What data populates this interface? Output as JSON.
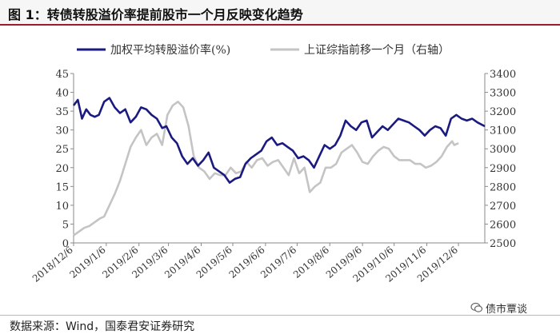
{
  "header": {
    "title": "图 1：转债转股溢价率提前股市一个月反映变化趋势"
  },
  "footer": {
    "source": "数据来源：Wind，国泰君安证券研究"
  },
  "watermark": {
    "text": "债市覃谈",
    "icon": "wechat-icon"
  },
  "colors": {
    "premium": "#1a1a80",
    "index": "#c4c4c4",
    "title_rule": "#9b1c2e",
    "axis": "#8a8a8a"
  },
  "chart_data": {
    "type": "line",
    "legend_position": "top",
    "grid": false,
    "x_range": [
      "2018-12-06",
      "2019-12-31"
    ],
    "x_ticks": [
      "2018/12/6",
      "2019/1/6",
      "2019/2/6",
      "2019/3/6",
      "2019/4/6",
      "2019/5/6",
      "2019/6/6",
      "2019/7/6",
      "2019/8/6",
      "2019/9/6",
      "2019/10/6",
      "2019/11/6",
      "2019/12/6"
    ],
    "y_left": {
      "min": 0,
      "max": 45,
      "ticks": [
        0,
        5,
        10,
        15,
        20,
        25,
        30,
        35,
        40,
        45
      ]
    },
    "y_right": {
      "min": 2500,
      "max": 3400,
      "ticks": [
        2500,
        2600,
        2700,
        2800,
        2900,
        3000,
        3100,
        3200,
        3300,
        3400
      ]
    },
    "series": [
      {
        "name": "加权平均转股溢价率(%)",
        "axis": "left",
        "x": [
          "2018-12-06",
          "2018-12-10",
          "2018-12-14",
          "2018-12-18",
          "2018-12-22",
          "2018-12-26",
          "2018-12-30",
          "2019-01-04",
          "2019-01-09",
          "2019-01-14",
          "2019-01-19",
          "2019-01-24",
          "2019-01-29",
          "2019-02-03",
          "2019-02-08",
          "2019-02-13",
          "2019-02-18",
          "2019-02-23",
          "2019-02-28",
          "2019-03-04",
          "2019-03-09",
          "2019-03-14",
          "2019-03-19",
          "2019-03-24",
          "2019-03-29",
          "2019-04-03",
          "2019-04-08",
          "2019-04-13",
          "2019-04-18",
          "2019-04-23",
          "2019-04-28",
          "2019-05-03",
          "2019-05-08",
          "2019-05-13",
          "2019-05-18",
          "2019-05-23",
          "2019-05-28",
          "2019-06-02",
          "2019-06-07",
          "2019-06-12",
          "2019-06-17",
          "2019-06-22",
          "2019-06-27",
          "2019-07-02",
          "2019-07-07",
          "2019-07-12",
          "2019-07-17",
          "2019-07-22",
          "2019-07-27",
          "2019-08-01",
          "2019-08-06",
          "2019-08-11",
          "2019-08-16",
          "2019-08-21",
          "2019-08-26",
          "2019-08-31",
          "2019-09-05",
          "2019-09-10",
          "2019-09-15",
          "2019-09-20",
          "2019-09-25",
          "2019-09-30",
          "2019-10-05",
          "2019-10-10",
          "2019-10-15",
          "2019-10-20",
          "2019-10-25",
          "2019-10-30",
          "2019-11-04",
          "2019-11-09",
          "2019-11-14",
          "2019-11-19",
          "2019-11-24",
          "2019-11-29",
          "2019-12-04",
          "2019-12-09",
          "2019-12-14",
          "2019-12-19",
          "2019-12-24",
          "2019-12-31"
        ],
        "y": [
          36.5,
          38,
          33,
          35.5,
          34,
          33.5,
          34,
          37.5,
          38.5,
          36,
          34.5,
          35.5,
          32,
          33.5,
          36,
          35.5,
          34,
          33,
          30.5,
          31,
          28,
          26.5,
          23,
          21,
          22.5,
          20.5,
          22,
          24,
          20,
          19,
          18,
          16,
          17,
          17.5,
          21,
          22.5,
          23.5,
          24.5,
          27,
          28,
          26,
          26.5,
          25.5,
          24.5,
          22.5,
          23,
          22,
          20,
          23,
          26,
          25,
          26,
          28.5,
          32.5,
          31,
          30,
          32,
          32.5,
          28,
          29.5,
          31,
          30,
          31.5,
          33,
          32.5,
          32,
          31,
          30,
          28.5,
          30,
          31,
          30.5,
          28.5,
          33,
          34,
          33,
          32.5,
          33,
          32,
          31
        ]
      },
      {
        "name": "上证综指前移一个月（右轴）",
        "axis": "right",
        "x": [
          "2018-12-06",
          "2018-12-11",
          "2018-12-16",
          "2018-12-21",
          "2018-12-26",
          "2018-12-31",
          "2019-01-04",
          "2019-01-09",
          "2019-01-14",
          "2019-01-19",
          "2019-01-24",
          "2019-01-29",
          "2019-02-03",
          "2019-02-08",
          "2019-02-13",
          "2019-02-18",
          "2019-02-23",
          "2019-02-28",
          "2019-03-05",
          "2019-03-10",
          "2019-03-15",
          "2019-03-20",
          "2019-03-25",
          "2019-03-30",
          "2019-04-04",
          "2019-04-09",
          "2019-04-14",
          "2019-04-19",
          "2019-04-24",
          "2019-04-29",
          "2019-05-04",
          "2019-05-09",
          "2019-05-14",
          "2019-05-19",
          "2019-05-24",
          "2019-05-29",
          "2019-06-03",
          "2019-06-08",
          "2019-06-13",
          "2019-06-18",
          "2019-06-23",
          "2019-06-28",
          "2019-07-03",
          "2019-07-08",
          "2019-07-13",
          "2019-07-18",
          "2019-07-23",
          "2019-07-28",
          "2019-08-02",
          "2019-08-07",
          "2019-08-12",
          "2019-08-17",
          "2019-08-22",
          "2019-08-27",
          "2019-09-01",
          "2019-09-06",
          "2019-09-11",
          "2019-09-16",
          "2019-09-21",
          "2019-09-26",
          "2019-10-01",
          "2019-10-06",
          "2019-10-11",
          "2019-10-16",
          "2019-10-21",
          "2019-10-26",
          "2019-10-31",
          "2019-11-05",
          "2019-11-10",
          "2019-11-15",
          "2019-11-20",
          "2019-11-25",
          "2019-11-30",
          "2019-12-02",
          "2019-12-06"
        ],
        "y": [
          2540,
          2560,
          2580,
          2590,
          2610,
          2630,
          2640,
          2700,
          2760,
          2830,
          2920,
          3010,
          3060,
          3100,
          3020,
          3060,
          3080,
          3020,
          3180,
          3230,
          3250,
          3220,
          3120,
          2960,
          2900,
          2880,
          2840,
          2870,
          2860,
          2860,
          2900,
          2870,
          2880,
          2930,
          2900,
          2940,
          2950,
          2910,
          2930,
          2940,
          2900,
          2860,
          2950,
          2870,
          2900,
          2770,
          2800,
          2820,
          2900,
          2900,
          2920,
          2980,
          3000,
          3020,
          2980,
          2930,
          2920,
          2960,
          2990,
          3010,
          3000,
          2960,
          2940,
          2940,
          2940,
          2920,
          2920,
          2900,
          2910,
          2930,
          2960,
          3010,
          3040,
          3020,
          3030
        ]
      }
    ]
  }
}
